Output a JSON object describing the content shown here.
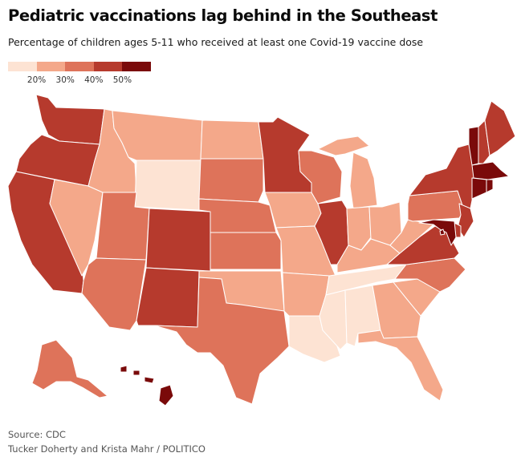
{
  "title": "Pediatric vaccinations lag behind in the Southeast",
  "subtitle": "Percentage of children ages 5-11 who received at least one Covid-19 vaccine dose",
  "legend": {
    "colors": [
      "#fde3d3",
      "#f4a88a",
      "#de735a",
      "#b63a2d",
      "#7a0a0a"
    ],
    "labels": [
      "20%",
      "30%",
      "40%",
      "50%"
    ]
  },
  "source": "Source: CDC",
  "byline": "Tucker Doherty and Krista Mahr / POLITICO",
  "states": [
    {
      "id": "WA",
      "bin": 3
    },
    {
      "id": "OR",
      "bin": 3
    },
    {
      "id": "CA",
      "bin": 3
    },
    {
      "id": "ID",
      "bin": 1
    },
    {
      "id": "NV",
      "bin": 1
    },
    {
      "id": "MT",
      "bin": 1
    },
    {
      "id": "WY",
      "bin": 0
    },
    {
      "id": "UT",
      "bin": 2
    },
    {
      "id": "AZ",
      "bin": 2
    },
    {
      "id": "CO",
      "bin": 3
    },
    {
      "id": "NM",
      "bin": 3
    },
    {
      "id": "ND",
      "bin": 1
    },
    {
      "id": "SD",
      "bin": 2
    },
    {
      "id": "NE",
      "bin": 2
    },
    {
      "id": "KS",
      "bin": 2
    },
    {
      "id": "OK",
      "bin": 1
    },
    {
      "id": "TX",
      "bin": 2
    },
    {
      "id": "MN",
      "bin": 3
    },
    {
      "id": "IA",
      "bin": 1
    },
    {
      "id": "MO",
      "bin": 1
    },
    {
      "id": "AR",
      "bin": 1
    },
    {
      "id": "LA",
      "bin": 0
    },
    {
      "id": "WI",
      "bin": 2
    },
    {
      "id": "IL",
      "bin": 3
    },
    {
      "id": "MI",
      "bin": 1
    },
    {
      "id": "IN",
      "bin": 1
    },
    {
      "id": "OH",
      "bin": 1
    },
    {
      "id": "KY",
      "bin": 1
    },
    {
      "id": "TN",
      "bin": 0
    },
    {
      "id": "MS",
      "bin": 0
    },
    {
      "id": "AL",
      "bin": 0
    },
    {
      "id": "GA",
      "bin": 1
    },
    {
      "id": "FL",
      "bin": 1
    },
    {
      "id": "SC",
      "bin": 1
    },
    {
      "id": "NC",
      "bin": 2
    },
    {
      "id": "VA",
      "bin": 3
    },
    {
      "id": "WV",
      "bin": 1
    },
    {
      "id": "PA",
      "bin": 2
    },
    {
      "id": "NY",
      "bin": 3
    },
    {
      "id": "NJ",
      "bin": 3
    },
    {
      "id": "DE",
      "bin": 3
    },
    {
      "id": "MD",
      "bin": 4
    },
    {
      "id": "DC",
      "bin": 4
    },
    {
      "id": "CT",
      "bin": 4
    },
    {
      "id": "RI",
      "bin": 4
    },
    {
      "id": "MA",
      "bin": 4
    },
    {
      "id": "VT",
      "bin": 4
    },
    {
      "id": "NH",
      "bin": 3
    },
    {
      "id": "ME",
      "bin": 3
    },
    {
      "id": "AK",
      "bin": 2
    },
    {
      "id": "HI",
      "bin": 4
    }
  ]
}
